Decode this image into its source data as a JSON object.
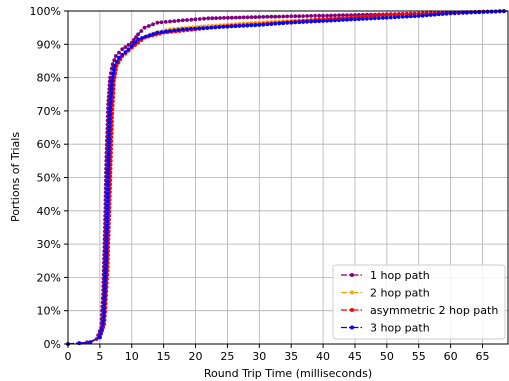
{
  "chart_data": {
    "type": "line",
    "title": "",
    "xlabel": "Round Trip Time (milliseconds)",
    "ylabel": "Portions of Trials",
    "xlim": [
      0,
      69
    ],
    "ylim": [
      0,
      100
    ],
    "x_ticks": [
      "0",
      "5",
      "10",
      "15",
      "20",
      "25",
      "30",
      "35",
      "40",
      "45",
      "50",
      "55",
      "60",
      "65"
    ],
    "y_ticks": [
      "0%",
      "10%",
      "20%",
      "30%",
      "40%",
      "50%",
      "60%",
      "70%",
      "80%",
      "90%",
      "100%"
    ],
    "grid": true,
    "legend_position": "lower-right",
    "series": [
      {
        "name": "1 hop path",
        "color": "#800080",
        "linestyle": "dashdot",
        "points": [
          [
            0,
            0
          ],
          [
            3,
            0.5
          ],
          [
            4.5,
            1.5
          ],
          [
            5.2,
            5
          ],
          [
            5.5,
            15
          ],
          [
            5.8,
            35
          ],
          [
            6.0,
            55
          ],
          [
            6.3,
            72
          ],
          [
            6.6,
            80
          ],
          [
            7.0,
            84
          ],
          [
            7.5,
            86.5
          ],
          [
            8.5,
            88.5
          ],
          [
            10,
            90.5
          ],
          [
            11,
            93
          ],
          [
            12,
            95
          ],
          [
            14,
            96.5
          ],
          [
            18,
            97.2
          ],
          [
            22,
            97.8
          ],
          [
            30,
            98.2
          ],
          [
            40,
            98.6
          ],
          [
            50,
            99.0
          ],
          [
            60,
            99.5
          ],
          [
            69,
            100
          ]
        ]
      },
      {
        "name": "2 hop path",
        "color": "#FFA500",
        "linestyle": "dashdot",
        "points": [
          [
            0,
            0
          ],
          [
            3.5,
            0.5
          ],
          [
            5,
            2
          ],
          [
            5.6,
            6
          ],
          [
            6.0,
            20
          ],
          [
            6.3,
            42
          ],
          [
            6.6,
            62
          ],
          [
            6.9,
            75
          ],
          [
            7.3,
            82
          ],
          [
            8,
            85.5
          ],
          [
            9.5,
            88
          ],
          [
            11,
            91
          ],
          [
            13,
            93
          ],
          [
            16,
            94.5
          ],
          [
            22,
            95.5
          ],
          [
            30,
            96.5
          ],
          [
            40,
            97.5
          ],
          [
            50,
            98.5
          ],
          [
            60,
            99.2
          ],
          [
            69,
            100
          ]
        ]
      },
      {
        "name": "asymmetric 2 hop path",
        "color": "#FF0000",
        "linestyle": "dashdot",
        "points": [
          [
            0,
            0
          ],
          [
            3.5,
            0.5
          ],
          [
            5,
            2
          ],
          [
            5.7,
            6
          ],
          [
            6.2,
            22
          ],
          [
            6.6,
            48
          ],
          [
            6.9,
            68
          ],
          [
            7.2,
            79
          ],
          [
            7.6,
            83.5
          ],
          [
            8.5,
            86.5
          ],
          [
            10,
            89
          ],
          [
            12,
            92
          ],
          [
            15,
            93.5
          ],
          [
            20,
            94.5
          ],
          [
            25,
            95.5
          ],
          [
            30,
            96
          ],
          [
            40,
            97.5
          ],
          [
            50,
            98.8
          ],
          [
            60,
            99.5
          ],
          [
            69,
            100
          ]
        ]
      },
      {
        "name": "3 hop path",
        "color": "#0000FF",
        "linestyle": "dashdot",
        "points": [
          [
            0,
            0
          ],
          [
            3.5,
            0.5
          ],
          [
            5,
            2
          ],
          [
            5.6,
            7
          ],
          [
            6.0,
            25
          ],
          [
            6.3,
            50
          ],
          [
            6.6,
            70
          ],
          [
            6.9,
            79
          ],
          [
            7.3,
            83.5
          ],
          [
            8,
            86
          ],
          [
            9.5,
            88.5
          ],
          [
            11,
            91.5
          ],
          [
            14,
            93.5
          ],
          [
            18,
            94.5
          ],
          [
            25,
            95.3
          ],
          [
            30,
            95.8
          ],
          [
            35,
            96.5
          ],
          [
            40,
            97
          ],
          [
            45,
            97.5
          ],
          [
            50,
            98
          ],
          [
            55,
            98.5
          ],
          [
            60,
            99.3
          ],
          [
            69,
            100
          ]
        ]
      }
    ]
  }
}
